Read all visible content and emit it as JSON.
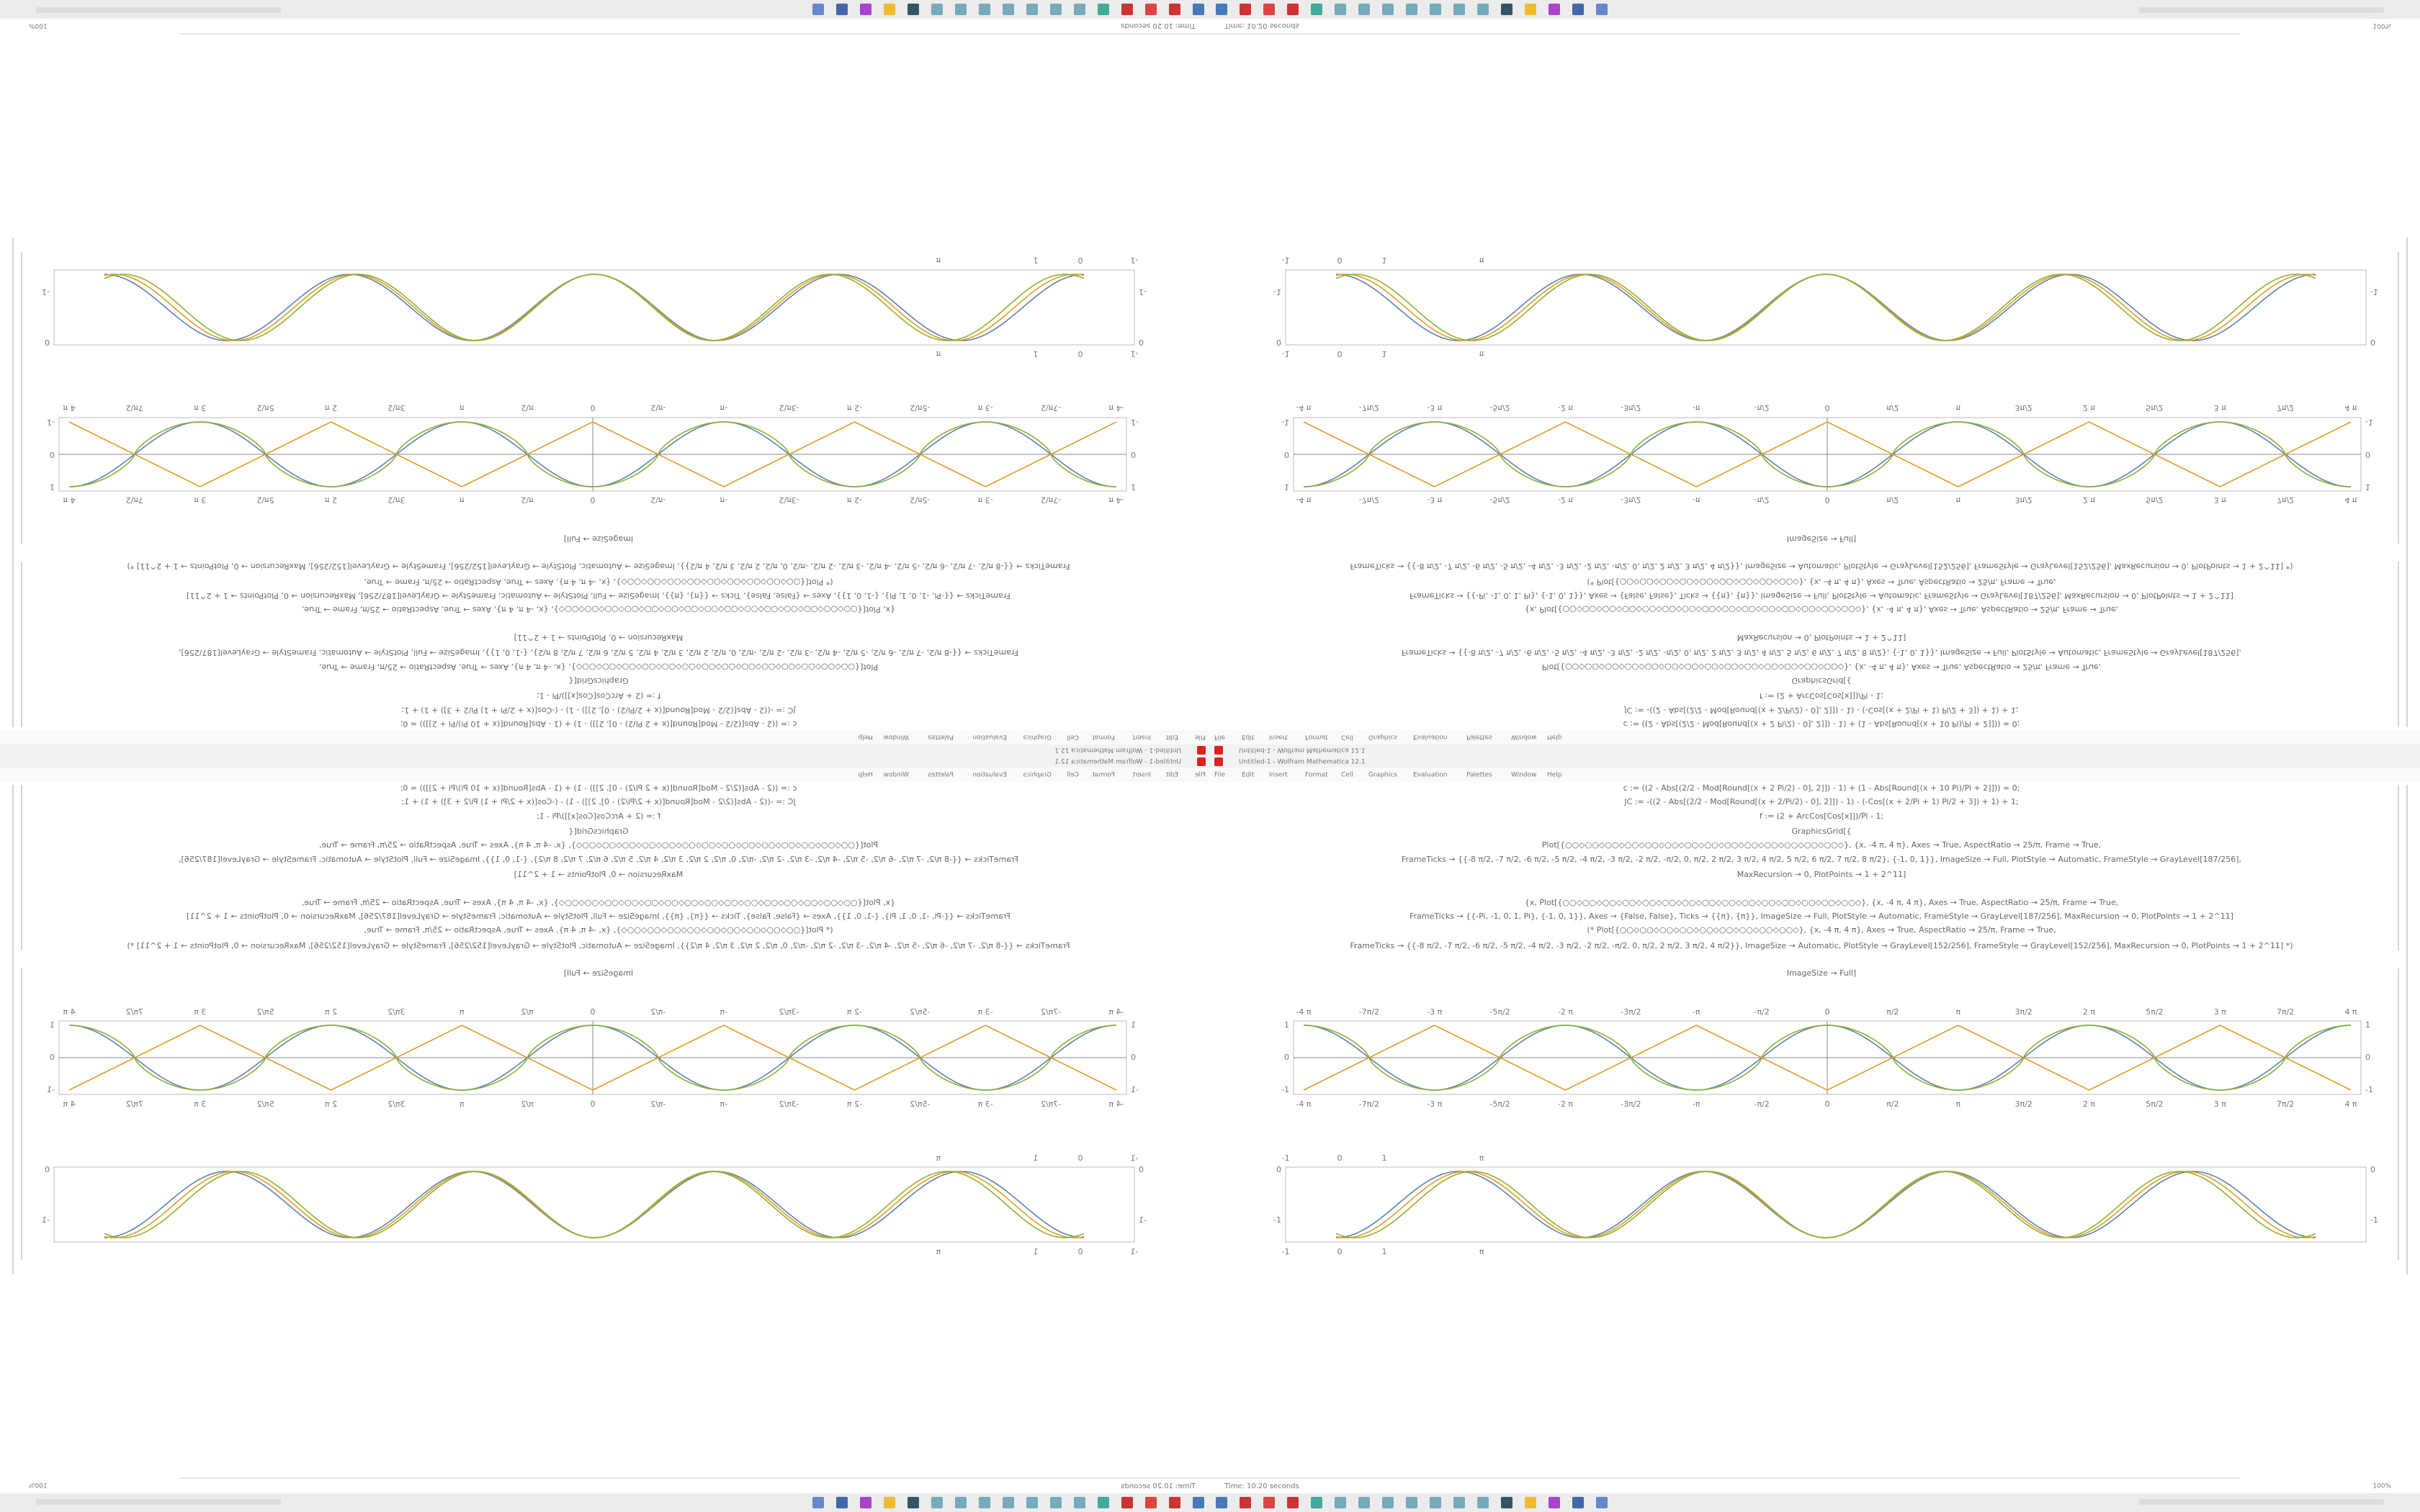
{
  "window": {
    "title": "Untitled-1 - Wolfram Mathematica 12.1",
    "menu": [
      "File",
      "Edit",
      "Insert",
      "Format",
      "Cell",
      "Graphics",
      "Evaluation",
      "Palettes",
      "Window",
      "Help"
    ],
    "status": "Time: 10.20 seconds",
    "zoom": "100%"
  },
  "code": [
    "c := ((2 - Abs[(2/2 - Mod[Round[(x + 2 Pi/2) - 0], 2]]) - 1) + (1 - Abs[Round[(x + 10 Pi)/Pi + 2]])) ≈ 0;",
    "JC := -((2 - Abs[(2/2 - Mod[Round[(x + 2/Pi/2) - 0], 2]]) - 1) - (-Cos[(x + 2/Pi + 1) Pi/2 + 3]) + 1) + 1;",
    "f := (2 + ArcCos[Cos[x]])/Pi - 1;",
    "GraphicsGrid[{",
    "Plot[{○○◇○○◇○○◇○○◇○○◇○○◇○○◇○○◇○○◇○○◇○○◇○○◇○○◇○○◇}, {x, -4 π, 4 π}, Axes → True, AspectRatio → 25/π, Frame → True,",
    "FrameTicks → {{-8 π/2, -7 π/2, -6 π/2, -5 π/2, -4 π/2, -3 π/2, -2 π/2, -π/2, 0, π/2, 2 π/2, 3 π/2, 4 π/2, 5 π/2, 6 π/2, 7 π/2, 8 π/2}, {-1, 0, 1}}, ImageSize → Full, PlotStyle → Automatic, FrameStyle → GrayLevel[187/256],",
    "MaxRecursion → 0, PlotPoints → 1 + 2^11]",
    "{x, Plot[{○○◇○○◇○○◇○○◇○○◇○○◇○○◇○○◇○○◇○○◇○○◇○○◇○○◇○○◇○○◇}, {x, -4 π, 4 π}, Axes → True, AspectRatio → 25/π, Frame → True,",
    "FrameTicks → {{-Pi, -1, 0, 1, Pi}, {-1, 0, 1}}, Axes → {False, False}, Ticks → {{π}, {π}}, ImageSize → Full, PlotStyle → Automatic, FrameStyle → GrayLevel[187/256], MaxRecursion → 0, PlotPoints → 1 + 2^11]",
    "(* Plot[{○○◇○○◇○○◇○○◇○○◇○○◇○○◇○○◇○○◇}, {x, -4 π, 4 π}, Axes → True, AspectRatio → 25/π, Frame → True,",
    "FrameTicks → {{-8 π/2, -7 π/2, -6 π/2, -5 π/2, -4 π/2, -3 π/2, -2 π/2, -π/2, 0, π/2, 2 π/2, 3 π/2, 4 π/2}}, ImageSize → Automatic, PlotStyle → GrayLevel[152/256], FrameStyle → GrayLevel[152/256], MaxRecursion → 0, PlotPoints → 1 + 2^11] *)",
    "ImageSize → Full]"
  ],
  "plot1": {
    "xticks": [
      "-4 π",
      "-7π/2",
      "-3 π",
      "-5π/2",
      "-2 π",
      "-3π/2",
      "-π",
      "-π/2",
      "0",
      "π/2",
      "π",
      "3π/2",
      "2 π",
      "5π/2",
      "3 π",
      "7π/2",
      "4 π"
    ],
    "yticks": [
      "1",
      "0",
      "-1"
    ]
  },
  "plot2": {
    "xticks": [
      "-1",
      "0",
      "1",
      "π"
    ],
    "yticks": [
      "0",
      "-1"
    ]
  }
}
